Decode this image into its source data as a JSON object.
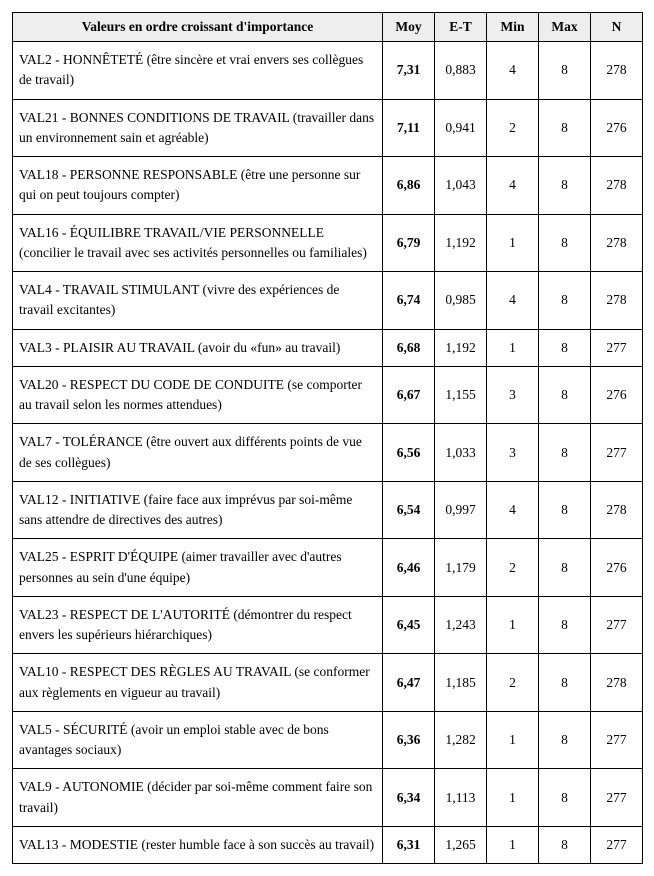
{
  "table": {
    "columns": [
      {
        "key": "desc",
        "label": "Valeurs en ordre croissant d'importance",
        "class": "c-desc"
      },
      {
        "key": "moy",
        "label": "Moy",
        "class": "c-num"
      },
      {
        "key": "et",
        "label": "E-T",
        "class": "c-num"
      },
      {
        "key": "min",
        "label": "Min",
        "class": "c-num"
      },
      {
        "key": "max",
        "label": "Max",
        "class": "c-num"
      },
      {
        "key": "n",
        "label": "N",
        "class": "c-num"
      }
    ],
    "rows": [
      {
        "desc": "VAL2 - HONNÊTETÉ (être sincère et vrai envers ses collègues de travail)",
        "moy": "7,31",
        "et": "0,883",
        "min": "4",
        "max": "8",
        "n": "278"
      },
      {
        "desc": "VAL21 - BONNES CONDITIONS DE TRAVAIL (travailler dans un environnement sain et agréable)",
        "moy": "7,11",
        "et": "0,941",
        "min": "2",
        "max": "8",
        "n": "276"
      },
      {
        "desc": "VAL18 - PERSONNE RESPONSABLE (être une personne sur qui on peut toujours compter)",
        "moy": "6,86",
        "et": "1,043",
        "min": "4",
        "max": "8",
        "n": "278"
      },
      {
        "desc": "VAL16 - ÉQUILIBRE TRAVAIL/VIE PERSONNELLE (concilier le travail avec ses activités personnelles ou familiales)",
        "moy": "6,79",
        "et": "1,192",
        "min": "1",
        "max": "8",
        "n": "278"
      },
      {
        "desc": "VAL4 - TRAVAIL STIMULANT (vivre des expériences de travail excitantes)",
        "moy": "6,74",
        "et": "0,985",
        "min": "4",
        "max": "8",
        "n": "278"
      },
      {
        "desc": "VAL3 - PLAISIR AU TRAVAIL (avoir du «fun» au travail)",
        "moy": "6,68",
        "et": "1,192",
        "min": "1",
        "max": "8",
        "n": "277"
      },
      {
        "desc": "VAL20 - RESPECT DU CODE DE CONDUITE (se comporter au travail selon les normes attendues)",
        "moy": "6,67",
        "et": "1,155",
        "min": "3",
        "max": "8",
        "n": "276"
      },
      {
        "desc": "VAL7 - TOLÉRANCE (être ouvert aux différents points de vue de ses collègues)",
        "moy": "6,56",
        "et": "1,033",
        "min": "3",
        "max": "8",
        "n": "277"
      },
      {
        "desc": "VAL12 - INITIATIVE (faire face aux imprévus par soi-même sans attendre de directives des autres)",
        "moy": "6,54",
        "et": "0,997",
        "min": "4",
        "max": "8",
        "n": "278"
      },
      {
        "desc": "VAL25 - ESPRIT D'ÉQUIPE (aimer travailler avec d'autres personnes au sein d'une équipe)",
        "moy": "6,46",
        "et": "1,179",
        "min": "2",
        "max": "8",
        "n": "276"
      },
      {
        "desc": "VAL23 - RESPECT DE L'AUTORITÉ (démontrer du respect envers les supérieurs hiérarchiques)",
        "moy": "6,45",
        "et": "1,243",
        "min": "1",
        "max": "8",
        "n": "277"
      },
      {
        "desc": "VAL10 - RESPECT DES RÈGLES AU TRAVAIL (se conformer aux règlements en vigueur au travail)",
        "moy": "6,47",
        "et": "1,185",
        "min": "2",
        "max": "8",
        "n": "278"
      },
      {
        "desc": "VAL5 - SÉCURITÉ (avoir un emploi stable avec de bons avantages sociaux)",
        "moy": "6,36",
        "et": "1,282",
        "min": "1",
        "max": "8",
        "n": "277"
      },
      {
        "desc": "VAL9 - AUTONOMIE (décider par soi-même comment faire son travail)",
        "moy": "6,34",
        "et": "1,113",
        "min": "1",
        "max": "8",
        "n": "277"
      },
      {
        "desc": "VAL13 - MODESTIE (rester humble face à son succès au travail)",
        "moy": "6,31",
        "et": "1,265",
        "min": "1",
        "max": "8",
        "n": "277"
      }
    ],
    "header_bg": "#eeeeee",
    "border_color": "#000000",
    "font_family": "Times New Roman",
    "font_size_pt": 10
  }
}
